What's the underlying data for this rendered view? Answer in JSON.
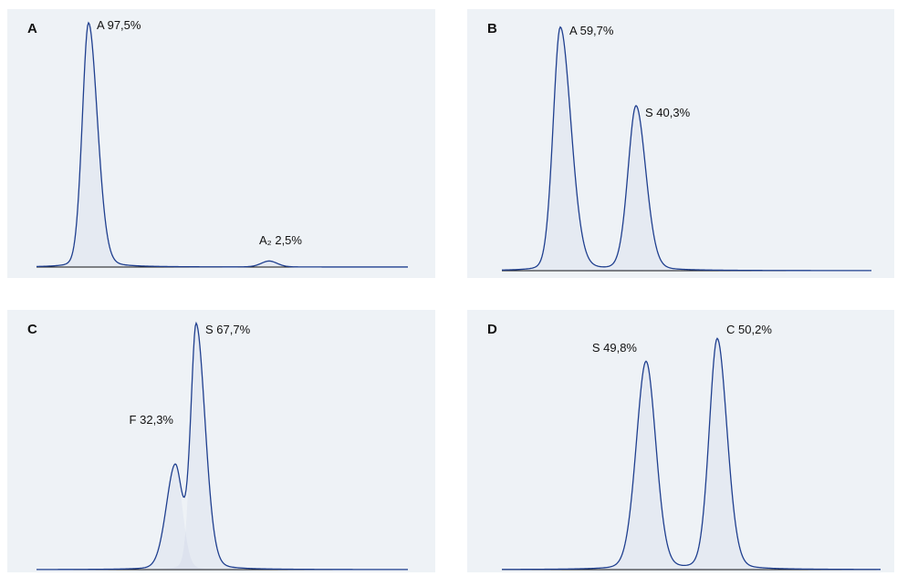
{
  "chart_data": [
    {
      "type": "peaks",
      "title": "A",
      "categories": [
        "A",
        "A₂"
      ],
      "values": [
        97.5,
        2.5
      ],
      "value_labels": [
        "97,5%",
        "2,5%"
      ],
      "color": "#1f3f8f"
    },
    {
      "type": "peaks",
      "title": "B",
      "categories": [
        "A",
        "S"
      ],
      "values": [
        59.7,
        40.3
      ],
      "value_labels": [
        "59,7%",
        "40,3%"
      ],
      "color": "#1f3f8f"
    },
    {
      "type": "peaks",
      "title": "C",
      "categories": [
        "F",
        "S"
      ],
      "values": [
        32.3,
        67.7
      ],
      "value_labels": [
        "32,3%",
        "67,7%"
      ],
      "color": "#1f3f8f"
    },
    {
      "type": "peaks",
      "title": "D",
      "categories": [
        "S",
        "C"
      ],
      "values": [
        49.8,
        50.2
      ],
      "value_labels": [
        "49,8%",
        "50,2%"
      ],
      "color": "#1f3f8f"
    }
  ]
}
